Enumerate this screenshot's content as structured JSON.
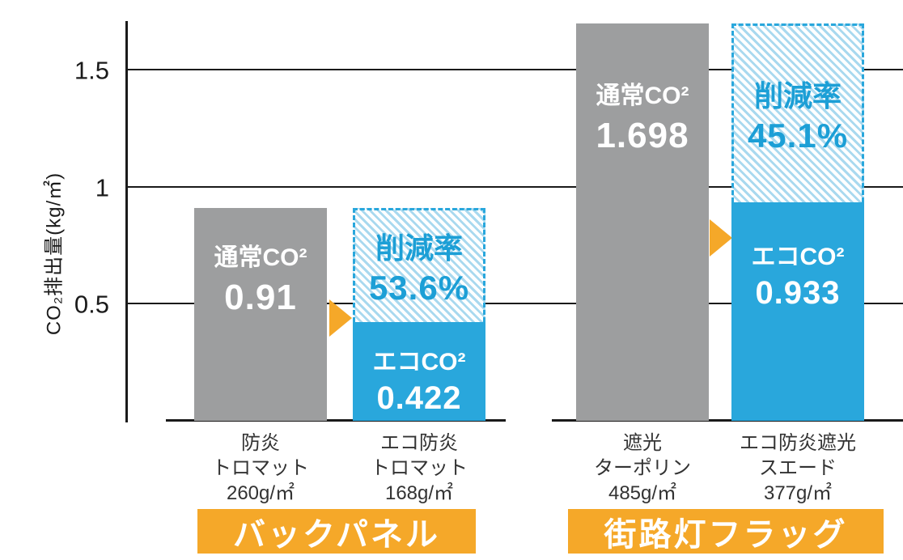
{
  "chart_data": {
    "type": "bar",
    "title": "",
    "ylabel": "CO₂排出量(kg/㎡)",
    "ylim": [
      0,
      1.7
    ],
    "grid": true,
    "yticks": [
      {
        "label": "1.5",
        "value": 1.5
      },
      {
        "label": "1",
        "value": 1.0
      },
      {
        "label": "0.5",
        "value": 0.5
      }
    ],
    "groups": [
      {
        "label": "バックパネル",
        "bars": [
          {
            "kind": "normal",
            "category_lines": [
              "防炎",
              "トロマット",
              "260g/㎡"
            ],
            "label": "通常CO²",
            "value": 0.91,
            "value_text": "0.91"
          },
          {
            "kind": "eco",
            "category_lines": [
              "エコ防炎",
              "トロマット",
              "168g/㎡"
            ],
            "total_value": 0.91,
            "eco_label": "エコCO²",
            "eco_value": 0.422,
            "eco_value_text": "0.422",
            "reduction_label": "削減率",
            "reduction_text": "53.6%"
          }
        ]
      },
      {
        "label": "街路灯フラッグ",
        "bars": [
          {
            "kind": "normal",
            "category_lines": [
              "遮光",
              "ターポリン",
              "485g/㎡"
            ],
            "label": "通常CO²",
            "value": 1.698,
            "value_text": "1.698"
          },
          {
            "kind": "eco",
            "category_lines": [
              "エコ防炎遮光",
              "スエード",
              "377g/㎡"
            ],
            "total_value": 1.698,
            "eco_label": "エコCO²",
            "eco_value": 0.933,
            "eco_value_text": "0.933",
            "reduction_label": "削減率",
            "reduction_text": "45.1%"
          }
        ]
      }
    ],
    "colors": {
      "normal_bar": "#9D9E9F",
      "eco_bar": "#29A7DC",
      "reduction_text": "#1C9FD6",
      "hatch_stripe": "#A9D9EF",
      "banner": "#F5A829",
      "arrow": "#F5A829"
    }
  }
}
